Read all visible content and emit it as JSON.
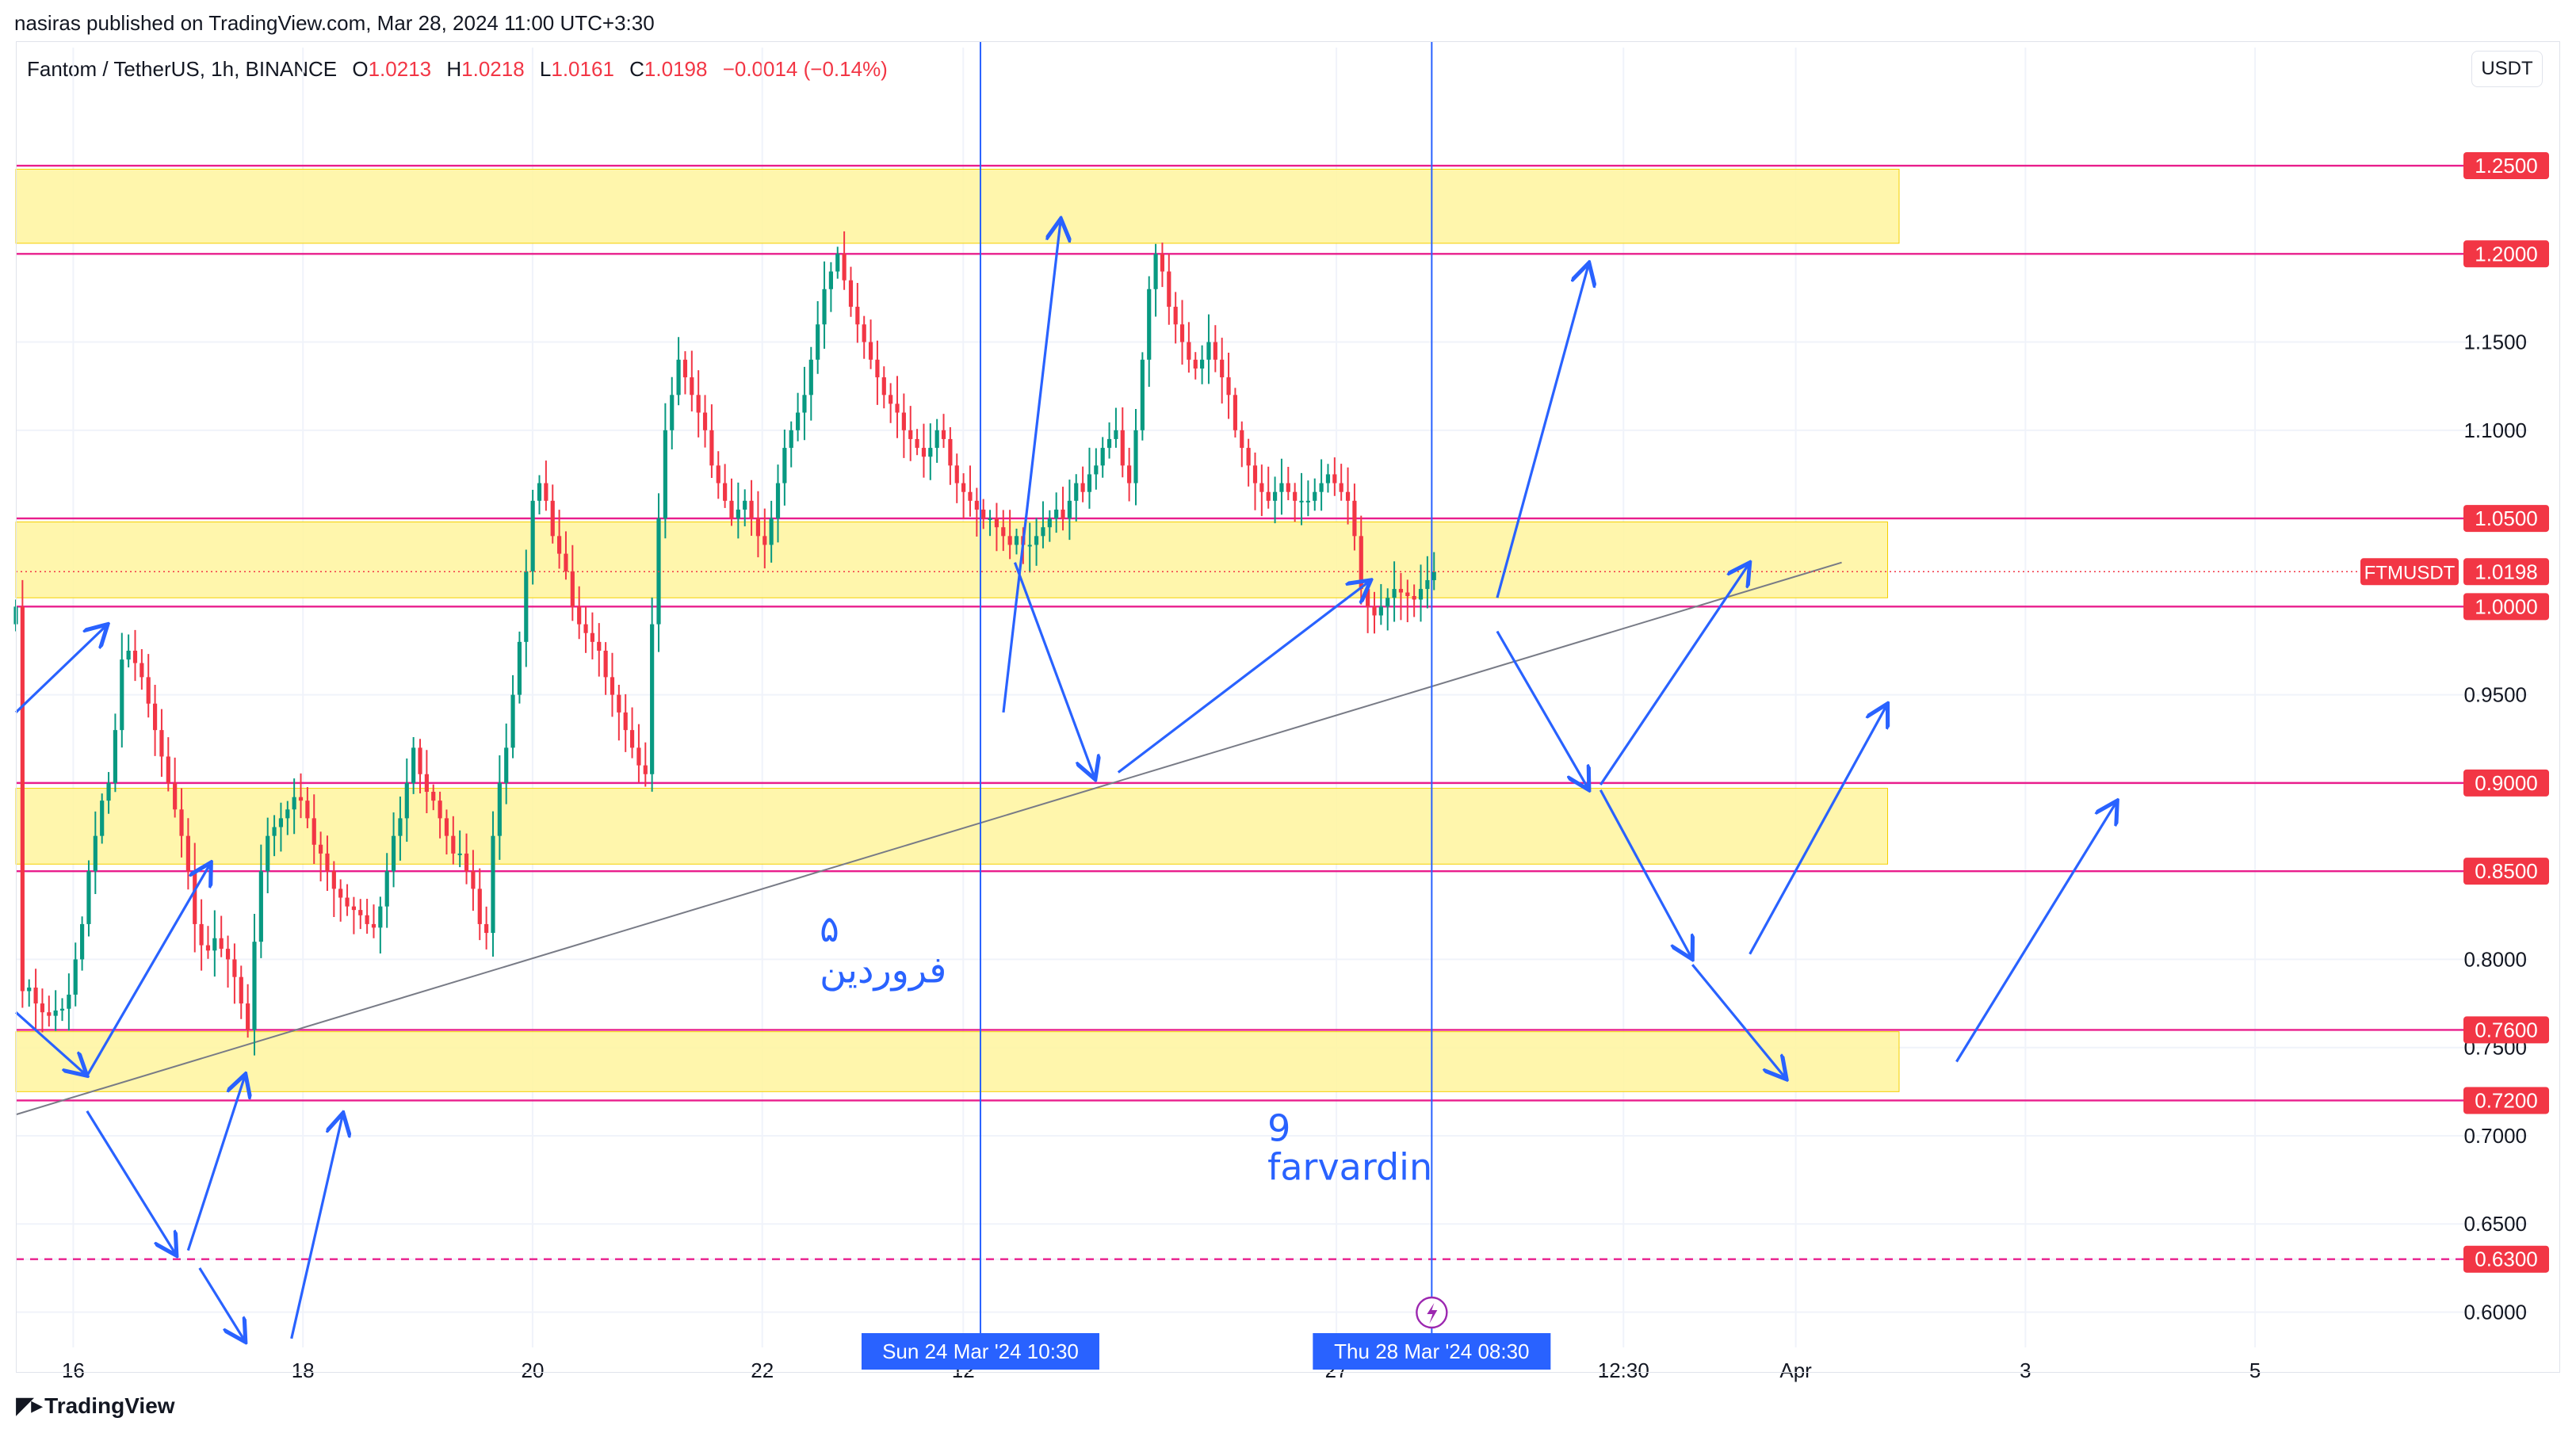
{
  "header": {
    "published_by": "nasiras published on TradingView.com, Mar 28, 2024 11:00 UTC+3:30",
    "symbol": "Fantom / TetherUS, 1h, BINANCE",
    "ohlc": {
      "o_label": "O",
      "o": "1.0213",
      "h_label": "H",
      "h": "1.0218",
      "l_label": "L",
      "l": "1.0161",
      "c_label": "C",
      "c": "1.0198",
      "change": "−0.0014 (−0.14%)"
    },
    "currency": "USDT"
  },
  "footer": {
    "brand": "TradingView"
  },
  "colors": {
    "up": "#089981",
    "down": "#f23645",
    "zone": "#fff59d",
    "level": "#e91e8c",
    "annotation": "#2962ff",
    "trend": "#787b86"
  },
  "chart_data": {
    "type": "candlestick",
    "symbol": "FTMUSDT",
    "last_price": "1.0198",
    "ylim": [
      0.58,
      1.29
    ],
    "y_ticks": [
      "1.1500",
      "1.1000",
      "0.9500",
      "0.8000",
      "0.7500",
      "0.7000",
      "0.6500",
      "0.6000"
    ],
    "y_tick_values": [
      1.15,
      1.1,
      0.95,
      0.8,
      0.75,
      0.7,
      0.65,
      0.6
    ],
    "x_ticks": [
      "16",
      "18",
      "20",
      "22",
      "12",
      "27",
      "12:30",
      "Apr",
      "3",
      "5"
    ],
    "x_tick_values": [
      16,
      18,
      20,
      22,
      23.75,
      27,
      29.5,
      31,
      33,
      35
    ],
    "xlim": [
      15.5,
      36.0
    ],
    "levels": [
      {
        "label": "1.2500",
        "value": 1.25,
        "dashed": false
      },
      {
        "label": "1.2000",
        "value": 1.2,
        "dashed": false
      },
      {
        "label": "1.0500",
        "value": 1.05,
        "dashed": false
      },
      {
        "label": "1.0000",
        "value": 1.0,
        "dashed": false
      },
      {
        "label": "0.9000",
        "value": 0.9,
        "dashed": false
      },
      {
        "label": "0.8500",
        "value": 0.85,
        "dashed": false
      },
      {
        "label": "0.7600",
        "value": 0.76,
        "dashed": false
      },
      {
        "label": "0.7200",
        "value": 0.72,
        "dashed": false
      },
      {
        "label": "0.6300",
        "value": 0.63,
        "dashed": true
      }
    ],
    "zones": [
      {
        "x0": 15.5,
        "x1": 31.9,
        "y0": 1.206,
        "y1": 1.248
      },
      {
        "x0": 15.5,
        "x1": 31.8,
        "y0": 1.005,
        "y1": 1.048
      },
      {
        "x0": 15.5,
        "x1": 31.8,
        "y0": 0.854,
        "y1": 0.897
      },
      {
        "x0": 15.5,
        "x1": 31.9,
        "y0": 0.725,
        "y1": 0.759
      }
    ],
    "vertical_markers": [
      {
        "x": 23.9,
        "label": "Sun 24 Mar '24   10:30"
      },
      {
        "x": 27.83,
        "label": "Thu 28 Mar '24   08:30"
      }
    ],
    "trendline": {
      "x0": 15.5,
      "y0": 0.712,
      "x1": 31.4,
      "y1": 1.025
    },
    "annotations": [
      {
        "text": "۵",
        "x": 22.5,
        "y": 0.81
      },
      {
        "text": "فروردین",
        "x": 22.5,
        "y": 0.787
      },
      {
        "text": "9",
        "x": 26.4,
        "y": 0.697
      },
      {
        "text": "farvardin",
        "x": 26.4,
        "y": 0.675
      }
    ],
    "arrows": [
      [
        [
          15.5,
          0.94
        ],
        [
          16.3,
          0.99
        ]
      ],
      [
        [
          15.5,
          0.77
        ],
        [
          16.12,
          0.734
        ]
      ],
      [
        [
          16.12,
          0.734
        ],
        [
          17.2,
          0.855
        ]
      ],
      [
        [
          16.12,
          0.714
        ],
        [
          16.9,
          0.632
        ]
      ],
      [
        [
          17.0,
          0.635
        ],
        [
          17.5,
          0.735
        ]
      ],
      [
        [
          17.1,
          0.625
        ],
        [
          17.5,
          0.583
        ]
      ],
      [
        [
          17.9,
          0.585
        ],
        [
          18.35,
          0.713
        ]
      ],
      [
        [
          24.1,
          0.94
        ],
        [
          24.6,
          1.22
        ]
      ],
      [
        [
          24.2,
          1.025
        ],
        [
          24.9,
          0.902
        ]
      ],
      [
        [
          25.1,
          0.906
        ],
        [
          27.3,
          1.015
        ]
      ],
      [
        [
          28.4,
          1.005
        ],
        [
          29.2,
          1.195
        ]
      ],
      [
        [
          28.4,
          0.986
        ],
        [
          29.2,
          0.896
        ]
      ],
      [
        [
          29.3,
          0.899
        ],
        [
          30.6,
          1.025
        ]
      ],
      [
        [
          29.3,
          0.896
        ],
        [
          30.1,
          0.8
        ]
      ],
      [
        [
          30.1,
          0.797
        ],
        [
          30.92,
          0.732
        ]
      ],
      [
        [
          30.6,
          0.803
        ],
        [
          31.8,
          0.945
        ]
      ],
      [
        [
          32.4,
          0.742
        ],
        [
          33.8,
          0.89
        ]
      ]
    ],
    "ohlc_hourly": [
      1.0,
      0.782,
      0.784,
      0.775,
      0.77,
      0.768,
      0.771,
      0.772,
      0.78,
      0.8,
      0.82,
      0.85,
      0.87,
      0.89,
      0.9,
      0.93,
      0.97,
      0.975,
      0.968,
      0.96,
      0.945,
      0.93,
      0.915,
      0.9,
      0.885,
      0.87,
      0.85,
      0.82,
      0.808,
      0.805,
      0.812,
      0.806,
      0.8,
      0.79,
      0.775,
      0.76,
      0.81,
      0.85,
      0.87,
      0.875,
      0.88,
      0.885,
      0.892,
      0.89,
      0.88,
      0.865,
      0.86,
      0.85,
      0.84,
      0.835,
      0.83,
      0.828,
      0.825,
      0.82,
      0.818,
      0.83,
      0.85,
      0.87,
      0.88,
      0.9,
      0.92,
      0.905,
      0.895,
      0.89,
      0.88,
      0.87,
      0.86,
      0.86,
      0.85,
      0.84,
      0.82,
      0.815,
      0.87,
      0.9,
      0.92,
      0.95,
      0.98,
      1.02,
      1.06,
      1.07,
      1.06,
      1.04,
      1.03,
      1.02,
      1.0,
      0.99,
      0.985,
      0.98,
      0.975,
      0.96,
      0.95,
      0.94,
      0.93,
      0.92,
      0.91,
      0.905,
      0.99,
      1.05,
      1.1,
      1.12,
      1.14,
      1.13,
      1.12,
      1.11,
      1.1,
      1.08,
      1.07,
      1.06,
      1.05,
      1.055,
      1.06,
      1.05,
      1.04,
      1.035,
      1.05,
      1.07,
      1.09,
      1.1,
      1.11,
      1.12,
      1.14,
      1.16,
      1.18,
      1.19,
      1.2,
      1.185,
      1.17,
      1.16,
      1.15,
      1.14,
      1.13,
      1.12,
      1.115,
      1.11,
      1.1,
      1.095,
      1.09,
      1.085,
      1.09,
      1.1,
      1.095,
      1.08,
      1.07,
      1.065,
      1.06,
      1.055,
      1.05,
      1.05,
      1.045,
      1.04,
      1.035,
      1.04,
      1.035,
      1.035,
      1.04,
      1.045,
      1.05,
      1.055,
      1.05,
      1.06,
      1.07,
      1.065,
      1.075,
      1.08,
      1.09,
      1.095,
      1.1,
      1.08,
      1.07,
      1.1,
      1.14,
      1.18,
      1.2,
      1.19,
      1.17,
      1.16,
      1.15,
      1.14,
      1.135,
      1.14,
      1.15,
      1.14,
      1.13,
      1.12,
      1.1,
      1.09,
      1.08,
      1.07,
      1.065,
      1.06,
      1.065,
      1.07,
      1.065,
      1.06,
      1.06,
      1.06,
      1.065,
      1.07,
      1.075,
      1.07,
      1.065,
      1.06,
      1.04,
      1.01,
      1.0,
      0.995,
      1.0,
      1.005,
      1.01,
      1.008,
      1.006,
      1.004,
      1.01,
      1.015,
      1.0198
    ]
  }
}
